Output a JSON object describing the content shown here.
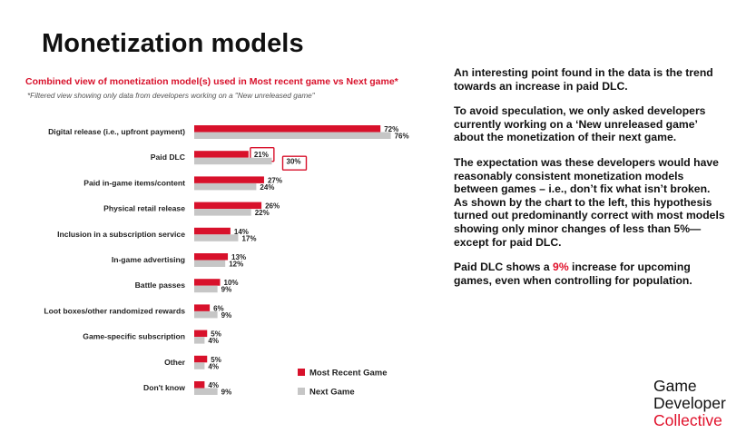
{
  "page": {
    "title": "Monetization models",
    "subtitle": "Combined view of monetization model(s) used in Most recent game vs Next game*",
    "filter_note": "*Filtered view showing only data from developers working on a \"New unreleased game\""
  },
  "commentary": {
    "p1": "An interesting point found in the data is the trend towards an increase in paid DLC.",
    "p2": "To avoid speculation, we only asked developers currently working on a ‘New unreleased game’ about the monetization of their next game.",
    "p3": "The expectation was these developers would have reasonably consistent monetization models between games – i.e., don’t fix what isn’t broken. As shown by the chart to the left, this hypothesis turned out predominantly correct with most models showing only minor changes of less than 5%—except for paid DLC.",
    "p4_before": "Paid DLC shows a ",
    "p4_highlight": "9%",
    "p4_after": " increase for upcoming games, even when controlling for population."
  },
  "brand": {
    "line1": "Game",
    "line2": "Developer",
    "line3": "Collective"
  },
  "colors": {
    "most_recent": "#d8112b",
    "next_game": "#c6c6c6",
    "highlight": "#e0102a"
  },
  "chart_data": {
    "type": "bar",
    "orientation": "horizontal",
    "categories": [
      "Digital release (i.e., upfront payment)",
      "Paid DLC",
      "Paid in-game items/content",
      "Physical retail release",
      "Inclusion in a subscription service",
      "In-game advertising",
      "Battle passes",
      "Loot boxes/other randomized rewards",
      "Game-specific subscription",
      "Other",
      "Don't know"
    ],
    "series": [
      {
        "name": "Most Recent Game",
        "values": [
          72,
          21,
          27,
          26,
          14,
          13,
          10,
          6,
          5,
          5,
          4
        ]
      },
      {
        "name": "Next Game",
        "values": [
          76,
          30,
          24,
          22,
          17,
          12,
          9,
          9,
          4,
          4,
          9
        ]
      }
    ],
    "value_suffix": "%",
    "highlighted_category": "Paid DLC",
    "legend_position": "bottom-right",
    "xlim": [
      0,
      100
    ]
  }
}
